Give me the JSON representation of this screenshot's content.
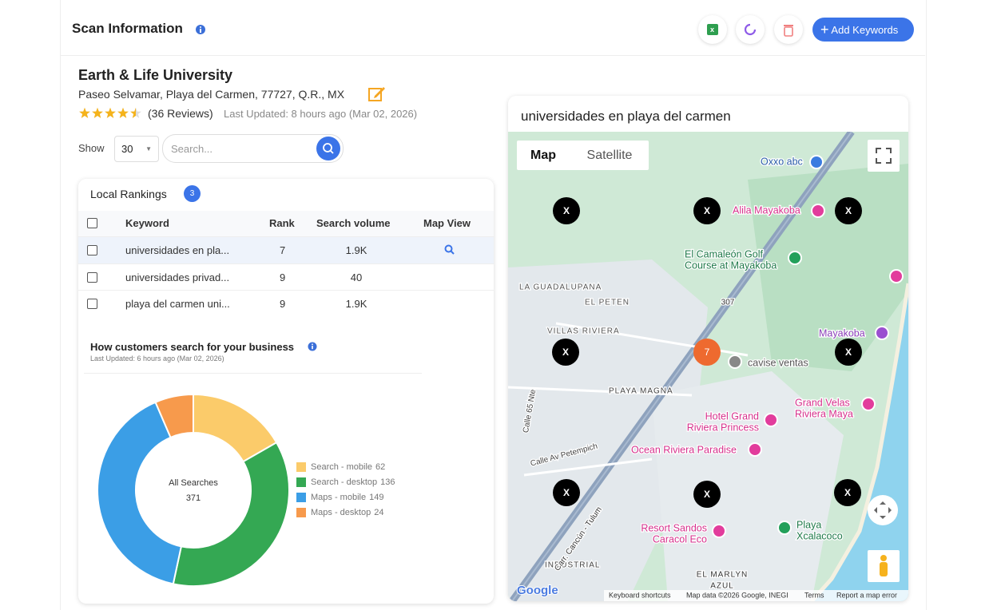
{
  "header": {
    "title": "Scan Information",
    "add_button": "Add Keywords"
  },
  "business": {
    "name": "Earth & Life University",
    "address": "Paseo Selvamar, Playa del Carmen, 77727, Q.R., MX",
    "rating": 4.5,
    "reviews": "(36 Reviews)",
    "updated": "Last Updated: 8 hours ago (Mar 02, 2026)"
  },
  "controls": {
    "show_label": "Show",
    "page_size": "30",
    "search_placeholder": "Search..."
  },
  "rankings": {
    "title": "Local Rankings",
    "count": "3",
    "columns": [
      "Keyword",
      "Rank",
      "Search volume",
      "Map View"
    ],
    "rows": [
      [
        "universidades en pla...",
        "7",
        "1.9K"
      ],
      [
        "universidades privad...",
        "9",
        "40"
      ],
      [
        "playa del carmen uni...",
        "9",
        "1.9K"
      ]
    ]
  },
  "chart_data": {
    "type": "donut",
    "title": "How customers search for your business",
    "subtitle": "Last Updated: 6 hours ago (Mar 02, 2026)",
    "center_label": "All Searches",
    "total": 371,
    "categories": [
      "Search - mobile",
      "Search - desktop",
      "Maps - mobile",
      "Maps - desktop"
    ],
    "values": [
      62,
      136,
      149,
      24
    ],
    "colors": [
      "#fbcb6a",
      "#34a853",
      "#3b9ee6",
      "#f79a4c"
    ]
  },
  "map": {
    "title": "universidades en playa del carmen",
    "tabs": [
      "Map",
      "Satellite"
    ],
    "grid_labels": [
      "X",
      "X",
      "X",
      "X",
      "X",
      "X",
      "X",
      "X"
    ],
    "rank_marker": "7",
    "places": [
      {
        "lines": [
          "Oxxo abc"
        ]
      },
      {
        "lines": [
          "Alila Mayakoba"
        ]
      },
      {
        "lines": [
          "El Camaleón Golf",
          "Course at Mayakoba"
        ]
      },
      {
        "lines": [
          "LA GUADALUPANA"
        ]
      },
      {
        "lines": [
          "EL PETEN"
        ]
      },
      {
        "lines": [
          "VILLAS RIVIERA"
        ]
      },
      {
        "lines": [
          "Mayakoba"
        ]
      },
      {
        "lines": [
          "cavise ventas"
        ]
      },
      {
        "lines": [
          "PLAYA MAGNA"
        ]
      },
      {
        "lines": [
          "Grand Velas",
          "Riviera Maya"
        ]
      },
      {
        "lines": [
          "Hotel Grand",
          "Riviera Princess"
        ]
      },
      {
        "lines": [
          "Ocean Riviera Paradise"
        ]
      },
      {
        "lines": [
          "Resort Sandos",
          "Caracol Eco"
        ]
      },
      {
        "lines": [
          "Playa",
          "Xcalacoco"
        ]
      },
      {
        "lines": [
          "INDUSTRIAL"
        ]
      },
      {
        "lines": [
          "EL MARLYN",
          "AZUL"
        ]
      },
      {
        "lines": [
          "Calle 65 Nte"
        ]
      },
      {
        "lines": [
          "Calle Av Petempich"
        ]
      },
      {
        "lines": [
          "Carr. Cancún - Tulum"
        ]
      },
      {
        "lines": [
          "307"
        ]
      }
    ],
    "footer": [
      "Google",
      "Keyboard shortcuts",
      "Map data ©2026 Google, INEGI",
      "Terms",
      "Report a map error"
    ]
  }
}
